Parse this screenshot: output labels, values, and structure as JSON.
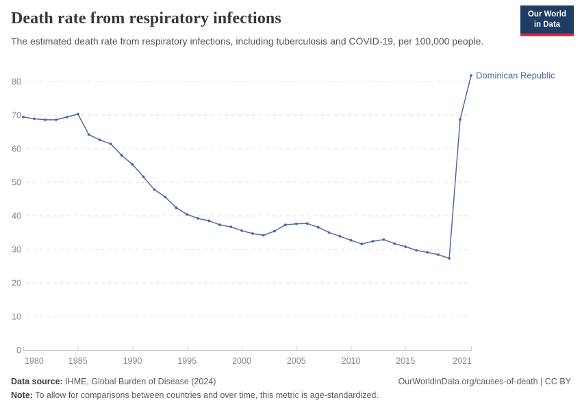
{
  "header": {
    "title": "Death rate from respiratory infections",
    "subtitle": "The estimated death rate from respiratory infections, including tuberculosis and COVID-19, per 100,000 people.",
    "logo": {
      "line1": "Our World",
      "line2": "in Data"
    }
  },
  "chart_data": {
    "type": "line",
    "title": "Death rate from respiratory infections",
    "xlabel": "",
    "ylabel": "",
    "xlim": [
      1980,
      2021
    ],
    "ylim": [
      0,
      80
    ],
    "yticks": [
      0,
      10,
      20,
      30,
      40,
      50,
      60,
      70,
      80
    ],
    "xticks": [
      1980,
      1985,
      1990,
      1995,
      2000,
      2005,
      2010,
      2015,
      2021
    ],
    "grid": "horizontal-dashed",
    "legend_position": "end-of-line-label",
    "x": [
      1980,
      1981,
      1982,
      1983,
      1984,
      1985,
      1986,
      1987,
      1988,
      1989,
      1990,
      1991,
      1992,
      1993,
      1994,
      1995,
      1996,
      1997,
      1998,
      1999,
      2000,
      2001,
      2002,
      2003,
      2004,
      2005,
      2006,
      2007,
      2008,
      2009,
      2010,
      2011,
      2012,
      2013,
      2014,
      2015,
      2016,
      2017,
      2018,
      2019,
      2020,
      2021
    ],
    "series": [
      {
        "name": "Dominican Republic",
        "color": "#4c6a9e",
        "values": [
          69.4,
          68.9,
          68.6,
          68.6,
          69.4,
          70.3,
          64.2,
          62.6,
          61.4,
          58.0,
          55.3,
          51.6,
          47.8,
          45.6,
          42.4,
          40.4,
          39.2,
          38.5,
          37.3,
          36.7,
          35.6,
          34.7,
          34.2,
          35.4,
          37.3,
          37.6,
          37.7,
          36.6,
          35.0,
          33.9,
          32.7,
          31.6,
          32.4,
          32.9,
          31.7,
          30.8,
          29.7,
          29.1,
          28.4,
          27.3,
          68.7,
          81.8
        ]
      }
    ]
  },
  "colors": {
    "line": "#4c6a9e",
    "gridline": "#dedede",
    "axis": "#c6c6c6",
    "axis_text": "#858585",
    "logo_bg": "#1d3d63",
    "logo_stripe": "#dc2a44"
  },
  "footer": {
    "datasource_label": "Data source:",
    "datasource_text": " IHME, Global Burden of Disease (2024)",
    "link": "OurWorldinData.org/causes-of-death | CC BY",
    "note_label": "Note:",
    "note_text": " To allow for comparisons between countries and over time, this metric is age-standardized."
  }
}
